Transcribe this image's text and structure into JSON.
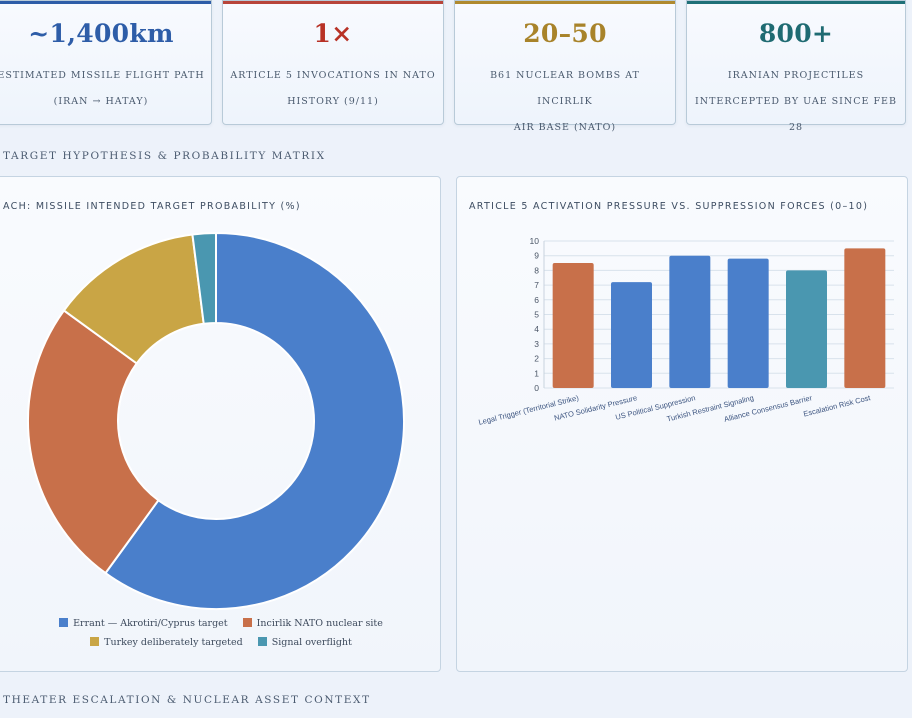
{
  "stats": [
    {
      "value": "~1,400km",
      "label_line1": "Estimated missile flight path",
      "label_line2": "(Iran → Hatay)",
      "color": "#2e5da8",
      "bar_color": "#2e5da8"
    },
    {
      "value": "1×",
      "label_line1": "Article 5 invocations in NATO",
      "label_line2": "history (9/11)",
      "color": "#b83226",
      "bar_color": "#b8453a"
    },
    {
      "value": "20–50",
      "label_line1": "B61 nuclear bombs at Incirlik",
      "label_line2": "air base (NATO)",
      "color": "#a8832a",
      "bar_color": "#b08a2e"
    },
    {
      "value": "800+",
      "label_line1": "Iranian projectiles",
      "label_line2": "intercepted by UAE since Feb 28",
      "color": "#1f6b72",
      "bar_color": "#1f7078"
    }
  ],
  "sections": {
    "matrix_title": "TARGET HYPOTHESIS & PROBABILITY MATRIX",
    "theater_title": "THEATER ESCALATION & NUCLEAR ASSET CONTEXT"
  },
  "chart_data": [
    {
      "type": "pie",
      "title": "ACH: MISSILE INTENDED TARGET PROBABILITY (%)",
      "labels": [
        "Errant — Akrotiri/Cyprus target",
        "Incirlik NATO nuclear site",
        "Turkey deliberately targeted",
        "Signal overflight"
      ],
      "values": [
        60,
        25,
        13,
        2
      ],
      "colors": [
        "#4a7fcb",
        "#c8704a",
        "#c9a545",
        "#4a97b0"
      ],
      "legend_position": "bottom"
    },
    {
      "type": "bar",
      "title": "ARTICLE 5 ACTIVATION PRESSURE VS. SUPPRESSION FORCES (0–10)",
      "categories": [
        "Legal Trigger (Territorial Strike)",
        "NATO Solidarity Pressure",
        "US Political Suppression",
        "Turkish Restraint Signaling",
        "Alliance Consensus Barrier",
        "Escalation Risk Cost"
      ],
      "values": [
        8.5,
        7.2,
        9.0,
        8.8,
        8.0,
        9.5
      ],
      "colors": [
        "#c8704a",
        "#4a7fcb",
        "#4a7fcb",
        "#4a7fcb",
        "#4a97b0",
        "#c8704a"
      ],
      "ylim": [
        0,
        10
      ],
      "yticks": [
        0,
        1,
        2,
        3,
        4,
        5,
        6,
        7,
        8,
        9,
        10
      ],
      "grid": true
    }
  ]
}
